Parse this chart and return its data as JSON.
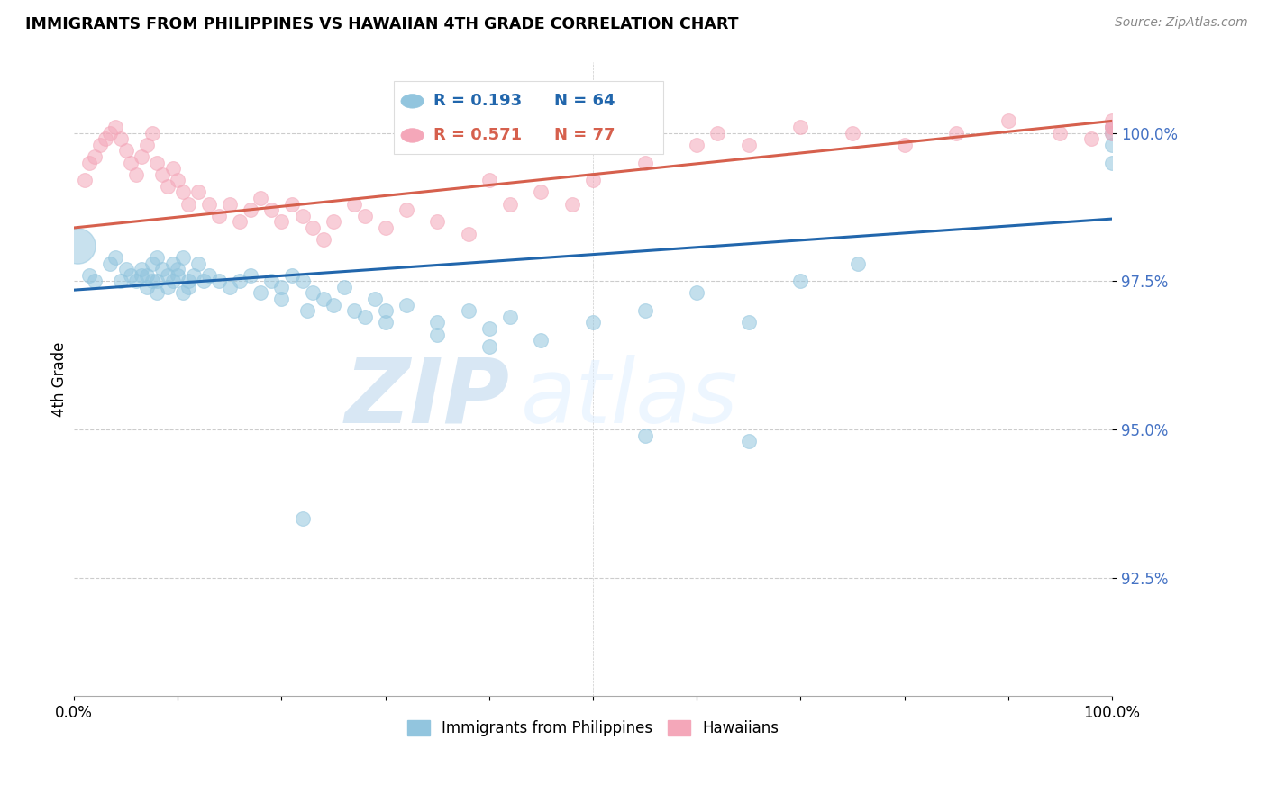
{
  "title": "IMMIGRANTS FROM PHILIPPINES VS HAWAIIAN 4TH GRADE CORRELATION CHART",
  "source": "Source: ZipAtlas.com",
  "ylabel": "4th Grade",
  "yticks": [
    92.5,
    95.0,
    97.5,
    100.0
  ],
  "ytick_labels": [
    "92.5%",
    "95.0%",
    "97.5%",
    "100.0%"
  ],
  "xlim": [
    0.0,
    100.0
  ],
  "ylim": [
    90.5,
    101.2
  ],
  "legend_r1": "R = 0.193",
  "legend_n1": "N = 64",
  "legend_r2": "R = 0.571",
  "legend_n2": "N = 77",
  "watermark_zip": "ZIP",
  "watermark_atlas": "atlas",
  "color_blue": "#92c5de",
  "color_pink": "#f4a7b9",
  "color_blue_line": "#2166ac",
  "color_pink_line": "#d6604d",
  "color_ytick": "#4472c4",
  "blue_scatter_x": [
    1.5,
    2.0,
    3.5,
    4.0,
    5.0,
    5.5,
    6.0,
    6.5,
    7.0,
    7.5,
    8.0,
    8.0,
    8.5,
    9.0,
    9.5,
    10.0,
    10.5,
    11.0,
    11.5,
    12.0,
    12.5,
    13.0,
    14.0,
    15.0,
    16.0,
    17.0,
    18.0,
    19.0,
    20.0,
    21.0,
    22.0,
    23.0,
    24.0,
    25.0,
    26.0,
    27.0,
    28.0,
    29.0,
    30.0,
    32.0,
    35.0,
    38.0,
    40.0,
    42.0,
    45.0,
    50.0,
    55.0,
    60.0,
    65.0,
    70.0,
    75.5,
    100.0,
    55.0,
    22.0
  ],
  "blue_scatter_y": [
    97.6,
    97.5,
    97.8,
    97.9,
    97.7,
    97.6,
    97.5,
    97.7,
    97.6,
    97.8,
    97.9,
    97.5,
    97.7,
    97.6,
    97.8,
    97.7,
    97.9,
    97.5,
    97.6,
    97.8,
    97.5,
    97.6,
    97.5,
    97.4,
    97.5,
    97.6,
    97.3,
    97.5,
    97.4,
    97.6,
    97.5,
    97.3,
    97.2,
    97.1,
    97.4,
    97.0,
    96.9,
    97.2,
    97.0,
    97.1,
    96.8,
    97.0,
    96.7,
    96.9,
    96.5,
    96.8,
    97.0,
    97.3,
    96.8,
    97.5,
    97.8,
    100.1,
    94.9,
    93.5
  ],
  "blue_scatter_x2": [
    4.5,
    6.5,
    7.0,
    7.5,
    8.0,
    9.0,
    9.5,
    10.0,
    10.5,
    11.0,
    20.0,
    22.5,
    30.0,
    35.0,
    40.0,
    65.0,
    100.0,
    100.0,
    100.0
  ],
  "blue_scatter_y2": [
    97.5,
    97.6,
    97.4,
    97.5,
    97.3,
    97.4,
    97.5,
    97.6,
    97.3,
    97.4,
    97.2,
    97.0,
    96.8,
    96.6,
    96.4,
    94.8,
    99.8,
    99.5,
    100.0
  ],
  "pink_scatter_x": [
    1.0,
    1.5,
    2.0,
    2.5,
    3.0,
    3.5,
    4.0,
    4.5,
    5.0,
    5.5,
    6.0,
    6.5,
    7.0,
    7.5,
    8.0,
    8.5,
    9.0,
    9.5,
    10.0,
    10.5,
    11.0,
    12.0,
    13.0,
    14.0,
    15.0,
    16.0,
    17.0,
    18.0,
    19.0,
    20.0,
    21.0,
    22.0,
    23.0,
    24.0,
    25.0,
    27.0,
    28.0,
    30.0,
    32.0,
    35.0,
    38.0,
    40.0,
    42.0,
    45.0,
    48.0,
    50.0,
    55.0,
    60.0,
    62.0,
    65.0,
    70.0,
    75.0,
    80.0,
    85.0,
    90.0,
    95.0,
    98.0,
    100.0,
    100.0,
    100.0,
    100.0
  ],
  "pink_scatter_y": [
    99.2,
    99.5,
    99.6,
    99.8,
    99.9,
    100.0,
    100.1,
    99.9,
    99.7,
    99.5,
    99.3,
    99.6,
    99.8,
    100.0,
    99.5,
    99.3,
    99.1,
    99.4,
    99.2,
    99.0,
    98.8,
    99.0,
    98.8,
    98.6,
    98.8,
    98.5,
    98.7,
    98.9,
    98.7,
    98.5,
    98.8,
    98.6,
    98.4,
    98.2,
    98.5,
    98.8,
    98.6,
    98.4,
    98.7,
    98.5,
    98.3,
    99.2,
    98.8,
    99.0,
    98.8,
    99.2,
    99.5,
    99.8,
    100.0,
    99.8,
    100.1,
    100.0,
    99.8,
    100.0,
    100.2,
    100.0,
    99.9,
    100.1,
    100.0,
    100.2,
    100.1
  ],
  "big_dot_x": 0.3,
  "big_dot_y": 98.1,
  "big_dot_size": 800,
  "blue_line_x0": 0.0,
  "blue_line_x1": 100.0,
  "blue_line_y0": 97.35,
  "blue_line_y1": 98.55,
  "pink_line_x0": 0.0,
  "pink_line_x1": 100.0,
  "pink_line_y0": 98.4,
  "pink_line_y1": 100.2
}
